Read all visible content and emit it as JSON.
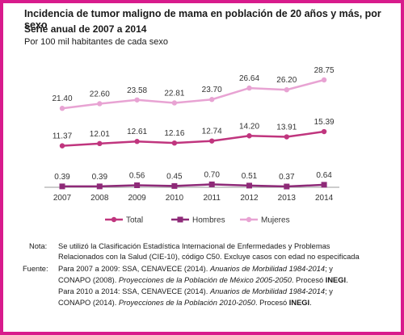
{
  "title": "Incidencia de tumor maligno de mama en población de 20 años y más, por sexo",
  "subtitle": "Serie anual de 2007 a 2014",
  "units": "Por 100 mil habitantes de cada sexo",
  "chart_data": {
    "type": "line",
    "x": [
      "2007",
      "2008",
      "2009",
      "2010",
      "2011",
      "2012",
      "2013",
      "2014"
    ],
    "series": [
      {
        "name": "Mujeres",
        "values": [
          21.4,
          22.6,
          23.58,
          22.81,
          23.7,
          26.64,
          26.2,
          28.75
        ],
        "labels": [
          "21.40",
          "22.60",
          "23.58",
          "22.81",
          "23.70",
          "26.64",
          "26.20",
          "28.75"
        ],
        "color": "#e8a3d3",
        "marker": "circle"
      },
      {
        "name": "Total",
        "values": [
          11.37,
          12.01,
          12.61,
          12.16,
          12.74,
          14.2,
          13.91,
          15.39
        ],
        "labels": [
          "11.37",
          "12.01",
          "12.61",
          "12.16",
          "12.74",
          "14.20",
          "13.91",
          "15.39"
        ],
        "color": "#c0357e",
        "marker": "circle"
      },
      {
        "name": "Hombres",
        "values": [
          0.39,
          0.39,
          0.56,
          0.45,
          0.7,
          0.51,
          0.37,
          0.64
        ],
        "labels": [
          "0.39",
          "0.39",
          "0.56",
          "0.45",
          "0.70",
          "0.51",
          "0.37",
          "0.64"
        ],
        "color": "#8e2a78",
        "marker": "square"
      }
    ],
    "legend": {
      "placement": "bottom",
      "order": [
        "Total",
        "Hombres",
        "Mujeres"
      ]
    },
    "grid": false,
    "ylim": [
      0,
      30
    ]
  },
  "notes": {
    "nota_label": "Nota:",
    "nota_line1": "Se utilizó la Clasificación Estadística Internacional de Enfermedades y Problemas",
    "nota_line2": "Relacionados con la Salud (CIE-10), código C50. Excluye casos con edad no especificada",
    "fuente_label": "Fuente:",
    "f1_a": "Para 2007 a 2009: SSA, CENAVECE (2014). ",
    "f1_b": "Anuarios de Morbilidad 1984-2014",
    "f1_c": "; y",
    "f2_a": "CONAPO (2008). ",
    "f2_b": "Proyecciones de la Población de México 2005-2050",
    "f2_c": ". Procesó ",
    "f2_d": "INEGI",
    "f2_e": ".",
    "f3_a": "Para 2010 a 2014: SSA, CENAVECE (2014). ",
    "f3_b": "Anuarios de Morbilidad 1984-2014",
    "f3_c": "; y",
    "f4_a": "CONAPO (2014). ",
    "f4_b": "Proyecciones de la Población 2010-2050",
    "f4_c": ". Procesó ",
    "f4_d": "INEGI",
    "f4_e": "."
  }
}
